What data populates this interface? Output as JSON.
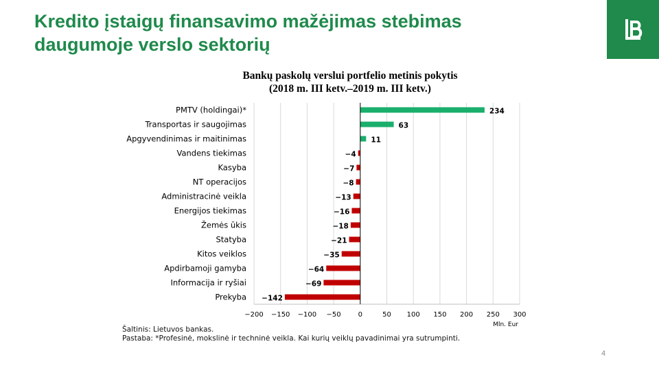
{
  "slide": {
    "title_line1": "Kredito įstaigų finansavimo mažėjimas stebimas",
    "title_line2": "daugumoje verslo sektorių",
    "source": "Šaltinis: Lietuvos bankas.",
    "note": "Pastaba: *Profesinė, mokslinė ir techninė veikla. Kai kurių  veiklų pavadinimai yra sutrumpinti.",
    "page_number": "4"
  },
  "colors": {
    "brand_green": "#1f8a4c",
    "positive_bar": "#1aaf6c",
    "negative_bar": "#c00000"
  },
  "logo": {
    "icon": "bank-logo-icon"
  },
  "chart_data": {
    "type": "bar",
    "orientation": "horizontal",
    "title": "Bankų paskolų verslui portfelio metinis pokytis",
    "subtitle": "(2018 m.  III ketv.–2019 m. III ketv.)",
    "xlabel": "Mln. Eur",
    "ylabel": "",
    "xlim": [
      -200,
      300
    ],
    "xticks": [
      -200,
      -150,
      -100,
      -50,
      0,
      50,
      100,
      150,
      200,
      250,
      300
    ],
    "xtick_labels": [
      "−200",
      "−150",
      "−100",
      "−50",
      "0",
      "50",
      "100",
      "150",
      "200",
      "250",
      "300"
    ],
    "grid": true,
    "categories": [
      "PMTV (holdingai)*",
      "Transportas ir saugojimas",
      "Apgyvendinimas ir maitinimas",
      "Vandens tiekimas",
      "Kasyba",
      "NT operacijos",
      "Administracinė veikla",
      "Energijos tiekimas",
      "Žemės ūkis",
      "Statyba",
      "Kitos veiklos",
      "Apdirbamoji gamyba",
      "Informacija ir ryšiai",
      "Prekyba"
    ],
    "values": [
      234,
      63,
      11,
      -4,
      -7,
      -8,
      -13,
      -16,
      -18,
      -21,
      -35,
      -64,
      -69,
      -142
    ],
    "value_labels": [
      "234",
      "63",
      "11",
      "−4",
      "−7",
      "−8",
      "−13",
      "−16",
      "−18",
      "−21",
      "−35",
      "−64",
      "−69",
      "−142"
    ]
  }
}
